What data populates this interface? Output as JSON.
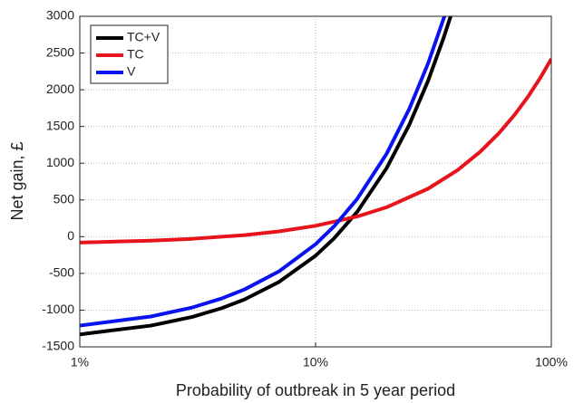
{
  "chart_data": {
    "type": "line",
    "x_label": "Probability of outbreak in 5 year period",
    "y_label": "Net gain, £",
    "xlog": true,
    "xlim": [
      1,
      100
    ],
    "xticks": [
      {
        "value": 1,
        "label": "1%"
      },
      {
        "value": 10,
        "label": "10%"
      },
      {
        "value": 100,
        "label": "100%"
      }
    ],
    "ylim": [
      -1500,
      3000
    ],
    "yticks": [
      -1500,
      -1000,
      -500,
      0,
      500,
      1000,
      1500,
      2000,
      2500,
      3000
    ],
    "grid": true,
    "legend": "top-left",
    "series": [
      {
        "name": "TC+V",
        "color": "#000000",
        "x": [
          1,
          2,
          3,
          4,
          5,
          7,
          10,
          12,
          15,
          20,
          25,
          30,
          35,
          37.4
        ],
        "values": [
          -1330,
          -1211,
          -1092,
          -973,
          -854,
          -616,
          -259,
          -21,
          336,
          931,
          1526,
          2121,
          2716,
          3000
        ]
      },
      {
        "name": "TC",
        "color": "#e8141c",
        "x": [
          1,
          2,
          3,
          5,
          7,
          10,
          15,
          20,
          30,
          40,
          50,
          60,
          70,
          80,
          90,
          100
        ],
        "values": [
          -80,
          -55,
          -29,
          21,
          72,
          148,
          274,
          400,
          653,
          905,
          1158,
          1410,
          1663,
          1915,
          2168,
          2420
        ]
      },
      {
        "name": "V",
        "color": "#0a14f0",
        "x": [
          1,
          2,
          3,
          4,
          5,
          7,
          10,
          12,
          15,
          20,
          25,
          30,
          35.2
        ],
        "values": [
          -1210,
          -1087,
          -964,
          -841,
          -718,
          -472,
          -103,
          143,
          512,
          1127,
          1742,
          2357,
          3000
        ]
      }
    ]
  }
}
